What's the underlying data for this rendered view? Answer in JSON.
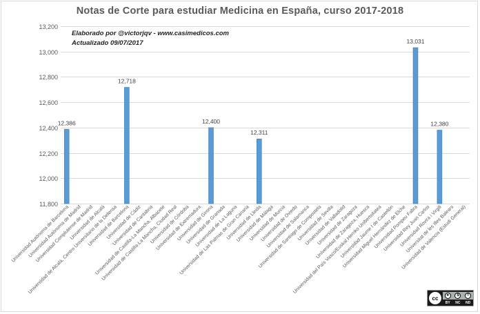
{
  "chart_data": {
    "type": "bar",
    "title": "Notas de Corte para estudiar  Medicina en España, curso 2017-2018",
    "credit_lines": [
      "Elaborado por @victorjqv - www.casimedicos.com",
      "Actualizado 09/07/2017"
    ],
    "license_badge": {
      "circle_text": "cc",
      "labels": [
        "BY",
        "NC",
        "ND"
      ]
    },
    "categories": [
      "Universidad Autónoma de Barcelona",
      "Universidad Autónoma de Madrid",
      "Universidad Complutense de Madrid",
      "Universidad de Alcalá",
      "Universidad de Alcalá, Centro Universitario de la Defensa",
      "Universidad de Barcelona",
      "Universidad de Cádiz",
      "Universidad de Cantabria",
      "Universidad de Castilla-La Mancha, Albacete",
      "Universidad de Castilla-La Mancha, Ciudad Real",
      "Universidad de Córdoba",
      "Universidad de Extremadura",
      "Universidad de Girona",
      "Universidad de Granada",
      "Universidad de La Laguna",
      "Universidad de Las Palmas de Gran Canaria",
      "Universidad de Lleida",
      "Universidad de Málaga",
      "Universidad de Murcia",
      "Universidad de Oviedo",
      "Universidad de Salamanca",
      "Universidad de Santiago de Compostela",
      "Universidad de Sevilla",
      "Universidad de Valladolid",
      "Universidad de Zaragoza",
      "Universidad de Zaragoza, Huesca",
      "Universidad del País Vasco/Euskal Herriko Unibertsitatea",
      "Universidad Jaume I de Castellón",
      "Universidad Miguel Hernández de Elche",
      "Universidad Pompeu Fabra",
      "Universidad Rey Juan Carlos",
      "Universidad Rovira i Virgili",
      "Universitat de les Illes Balears",
      "Universidad de Valencia (Estudi General)"
    ],
    "values": [
      12.386,
      null,
      null,
      null,
      null,
      12.718,
      null,
      null,
      null,
      null,
      null,
      null,
      12.4,
      null,
      null,
      null,
      12.311,
      null,
      null,
      null,
      null,
      null,
      null,
      null,
      null,
      null,
      null,
      null,
      null,
      13.031,
      null,
      12.38,
      null,
      null
    ],
    "data_labels": [
      "12,386",
      "",
      "",
      "",
      "",
      "12,718",
      "",
      "",
      "",
      "",
      "",
      "",
      "12,400",
      "",
      "",
      "",
      "12,311",
      "",
      "",
      "",
      "",
      "",
      "",
      "",
      "",
      "",
      "",
      "",
      "",
      "13,031",
      "",
      "12,380",
      "",
      ""
    ],
    "ylim": [
      11.8,
      13.2
    ],
    "yticks": [
      11.8,
      12.0,
      12.2,
      12.4,
      12.6,
      12.8,
      13.0,
      13.2
    ],
    "ytick_labels": [
      "11,800",
      "12,000",
      "12,200",
      "12,400",
      "12,600",
      "12,800",
      "13,000",
      "13,200"
    ],
    "grid": true,
    "xlabel": "",
    "ylabel": "",
    "bar_color": "#5b9bd5",
    "bar_edge_color": "#2e75b6",
    "grid_color": "#d9d9d9",
    "label_color": "#595959"
  }
}
